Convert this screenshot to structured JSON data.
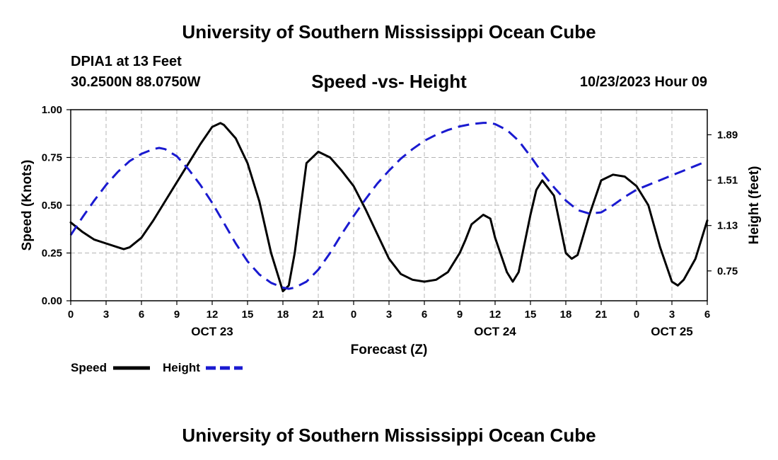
{
  "header": {
    "title": "University of Southern Mississippi Ocean Cube",
    "station": "DPIA1 at 13 Feet",
    "coords": "30.2500N  88.0750W",
    "datetime": "10/23/2023 Hour 09"
  },
  "footer": {
    "title": "University of Southern Mississippi Ocean Cube"
  },
  "colors": {
    "speed": "#000000",
    "height": "#1a1ad0",
    "grid": "#b4b4b4"
  },
  "chart_data": {
    "type": "line",
    "title": "Speed -vs- Height",
    "xlabel": "Forecast (Z)",
    "ylabel": "Speed (Knots)",
    "y2label": "Height (feet)",
    "x_hours_range": [
      0,
      54
    ],
    "x_tick_labels": [
      "0",
      "3",
      "6",
      "9",
      "12",
      "15",
      "18",
      "21",
      "0",
      "3",
      "6",
      "9",
      "12",
      "15",
      "18",
      "21",
      "0",
      "3",
      "6"
    ],
    "day_labels": [
      {
        "label": "OCT 23",
        "hour": 12
      },
      {
        "label": "OCT 24",
        "hour": 36
      },
      {
        "label": "OCT 25",
        "hour": 51
      }
    ],
    "ylim": [
      0,
      1.0
    ],
    "y_ticks": [
      "0.00",
      "0.25",
      "0.50",
      "0.75",
      "1.00"
    ],
    "y_tick_values": [
      0,
      0.25,
      0.5,
      0.75,
      1.0
    ],
    "y2lim": [
      0.5,
      2.1
    ],
    "y2_ticks": [
      "0.75",
      "1.13",
      "1.51",
      "1.89"
    ],
    "y2_tick_values": [
      0.75,
      1.13,
      1.51,
      1.89
    ],
    "grid": true,
    "legend": [
      {
        "name": "Speed",
        "style": "solid"
      },
      {
        "name": "Height",
        "style": "dashed"
      }
    ],
    "series": [
      {
        "name": "Speed",
        "axis": "left",
        "style": "solid",
        "x": [
          0,
          1,
          2,
          3,
          4,
          4.5,
          5,
          6,
          7,
          8,
          9,
          10,
          11,
          12,
          12.7,
          13,
          14,
          15,
          16,
          17,
          18,
          18.5,
          19,
          20,
          21,
          22,
          23,
          24,
          25,
          26,
          27,
          28,
          29,
          30,
          31,
          32,
          33,
          33.5,
          34,
          35,
          35.6,
          36,
          37,
          37.5,
          38,
          39,
          39.5,
          40,
          41,
          42,
          42.5,
          43,
          44,
          45,
          46,
          47,
          48,
          49,
          50,
          51,
          51.5,
          52,
          53,
          54
        ],
        "values": [
          0.41,
          0.36,
          0.32,
          0.3,
          0.28,
          0.27,
          0.28,
          0.33,
          0.42,
          0.52,
          0.62,
          0.72,
          0.82,
          0.91,
          0.93,
          0.92,
          0.85,
          0.72,
          0.52,
          0.25,
          0.05,
          0.08,
          0.25,
          0.72,
          0.78,
          0.75,
          0.68,
          0.6,
          0.48,
          0.35,
          0.22,
          0.14,
          0.11,
          0.1,
          0.11,
          0.15,
          0.25,
          0.32,
          0.4,
          0.45,
          0.43,
          0.33,
          0.15,
          0.1,
          0.15,
          0.45,
          0.58,
          0.63,
          0.55,
          0.25,
          0.22,
          0.24,
          0.45,
          0.63,
          0.66,
          0.65,
          0.6,
          0.5,
          0.28,
          0.1,
          0.08,
          0.11,
          0.22,
          0.42
        ]
      },
      {
        "name": "Height",
        "axis": "right",
        "style": "dashed",
        "x": [
          0,
          1,
          2,
          3,
          4,
          5,
          6,
          7,
          7.5,
          8,
          9,
          10,
          11,
          12,
          13,
          14,
          15,
          16,
          17,
          18,
          18.5,
          19,
          20,
          21,
          22,
          23,
          24,
          25,
          26,
          27,
          28,
          29,
          30,
          31,
          32,
          33,
          34,
          35,
          35.5,
          36,
          37,
          38,
          39,
          40,
          41,
          42,
          43,
          44,
          45,
          46,
          47,
          48,
          49,
          50,
          51,
          52,
          53,
          54
        ],
        "values": [
          1.05,
          1.2,
          1.34,
          1.47,
          1.58,
          1.67,
          1.73,
          1.77,
          1.78,
          1.77,
          1.71,
          1.6,
          1.47,
          1.32,
          1.15,
          0.98,
          0.83,
          0.72,
          0.65,
          0.61,
          0.6,
          0.61,
          0.66,
          0.76,
          0.9,
          1.06,
          1.21,
          1.35,
          1.48,
          1.59,
          1.69,
          1.77,
          1.84,
          1.89,
          1.93,
          1.96,
          1.98,
          1.99,
          1.99,
          1.98,
          1.93,
          1.84,
          1.71,
          1.57,
          1.45,
          1.34,
          1.26,
          1.23,
          1.24,
          1.3,
          1.37,
          1.43,
          1.47,
          1.51,
          1.55,
          1.59,
          1.63,
          1.67
        ]
      }
    ]
  }
}
